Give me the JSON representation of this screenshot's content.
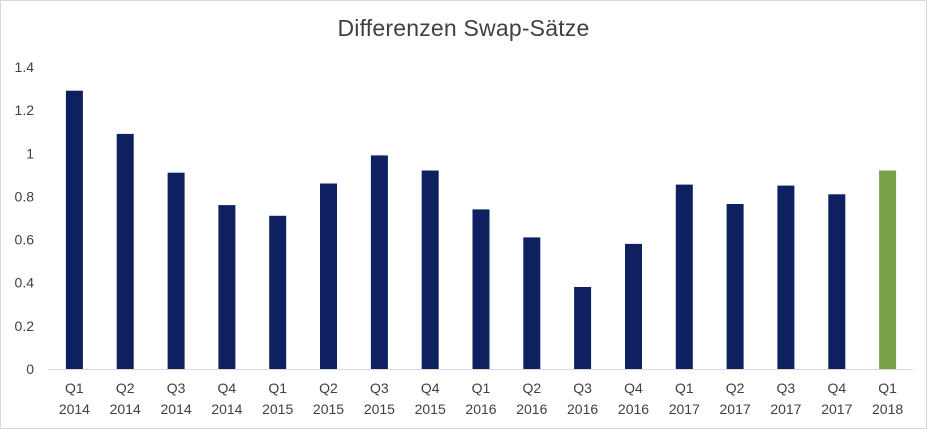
{
  "chart_data": {
    "type": "bar",
    "title": "Differenzen Swap-Sätze",
    "xlabel": "",
    "ylabel": "",
    "ylim": [
      0,
      1.4
    ],
    "yticks": [
      0,
      0.2,
      0.4,
      0.6,
      0.8,
      1,
      1.2,
      1.4
    ],
    "ytick_labels": [
      "0",
      "0.2",
      "0.4",
      "0.6",
      "0.8",
      "1",
      "1.2",
      "1.4"
    ],
    "grid": false,
    "legend": "none",
    "categories": [
      {
        "quarter": "Q1",
        "year": "2014"
      },
      {
        "quarter": "Q2",
        "year": "2014"
      },
      {
        "quarter": "Q3",
        "year": "2014"
      },
      {
        "quarter": "Q4",
        "year": "2014"
      },
      {
        "quarter": "Q1",
        "year": "2015"
      },
      {
        "quarter": "Q2",
        "year": "2015"
      },
      {
        "quarter": "Q3",
        "year": "2015"
      },
      {
        "quarter": "Q4",
        "year": "2015"
      },
      {
        "quarter": "Q1",
        "year": "2016"
      },
      {
        "quarter": "Q2",
        "year": "2016"
      },
      {
        "quarter": "Q3",
        "year": "2016"
      },
      {
        "quarter": "Q4",
        "year": "2016"
      },
      {
        "quarter": "Q1",
        "year": "2017"
      },
      {
        "quarter": "Q2",
        "year": "2017"
      },
      {
        "quarter": "Q3",
        "year": "2017"
      },
      {
        "quarter": "Q4",
        "year": "2017"
      },
      {
        "quarter": "Q1",
        "year": "2018"
      }
    ],
    "values": [
      1.29,
      1.09,
      0.91,
      0.76,
      0.71,
      0.86,
      0.99,
      0.92,
      0.74,
      0.61,
      0.38,
      0.58,
      0.855,
      0.765,
      0.85,
      0.81,
      0.92
    ],
    "colors": {
      "default": "#0e2060",
      "highlight": "#77a047",
      "axis": "#d9d9d9"
    },
    "highlight_index": 16
  }
}
